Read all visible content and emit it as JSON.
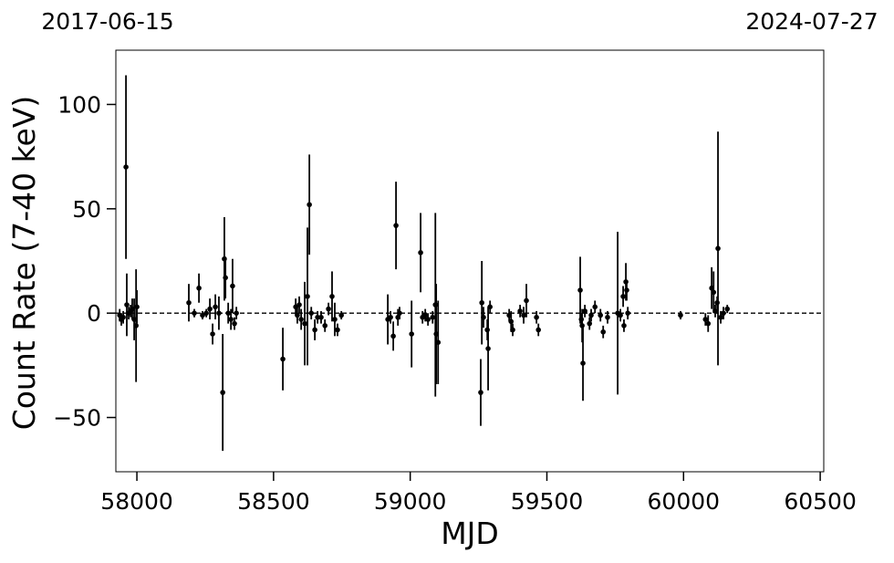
{
  "chart_data": {
    "type": "errorbar",
    "top_labels": [
      "2017-06-15",
      "2024-07-27"
    ],
    "xlabel": "MJD",
    "ylabel": "Count Rate (7-40 keV)",
    "color": "#000000",
    "x": [
      57937,
      57943,
      57950,
      57960,
      57963,
      57970,
      57977,
      57983,
      57990,
      57997,
      58000,
      58190,
      58210,
      58227,
      58240,
      58254,
      58267,
      58277,
      58287,
      58300,
      58314,
      58320,
      58324,
      58334,
      58344,
      58350,
      58357,
      58364,
      58534,
      58581,
      58587,
      58594,
      58601,
      58614,
      58624,
      58631,
      58638,
      58651,
      58661,
      58674,
      58688,
      58701,
      58714,
      58724,
      58734,
      58748,
      58918,
      58928,
      58938,
      58948,
      58955,
      58961,
      59005,
      59038,
      59045,
      59055,
      59065,
      59082,
      59092,
      59095,
      59102,
      59258,
      59262,
      59268,
      59282,
      59285,
      59292,
      59362,
      59369,
      59375,
      59402,
      59415,
      59425,
      59462,
      59469,
      59622,
      59626,
      59629,
      59632,
      59639,
      59656,
      59662,
      59676,
      59696,
      59706,
      59722,
      59759,
      59769,
      59779,
      59782,
      59789,
      59792,
      59796,
      59989,
      60080,
      60090,
      60103,
      60110,
      60116,
      60123,
      60126,
      60136,
      60146,
      60160
    ],
    "values": [
      -1,
      -3,
      -2,
      70,
      4,
      0,
      1,
      2,
      -3,
      -6,
      3,
      5,
      0,
      12,
      -1,
      0,
      2,
      -10,
      3,
      0,
      -38,
      26,
      17,
      0,
      -3,
      13,
      -5,
      0,
      -22,
      3,
      -1,
      4,
      -3,
      -5,
      8,
      52,
      0,
      -8,
      -2,
      -2,
      -6,
      2,
      8,
      -3,
      -8,
      -1,
      -3,
      -2,
      -11,
      42,
      -2,
      0,
      -10,
      29,
      -2,
      -1,
      -3,
      -2,
      4,
      -10,
      -14,
      -38,
      5,
      -2,
      -8,
      -17,
      3,
      -1,
      -4,
      -8,
      1,
      -1,
      6,
      -2,
      -8,
      11,
      -3,
      -6,
      -24,
      1,
      -5,
      -1,
      3,
      -1,
      -9,
      -2,
      0,
      -1,
      8,
      -6,
      15,
      11,
      0,
      -1,
      -3,
      -5,
      12,
      10,
      1,
      5,
      31,
      -2,
      0,
      2
    ],
    "errors": [
      3,
      3,
      3,
      44,
      15,
      3,
      3,
      5,
      10,
      27,
      8,
      9,
      2,
      7,
      2,
      2,
      5,
      5,
      6,
      8,
      28,
      20,
      10,
      5,
      5,
      13,
      3,
      3,
      15,
      4,
      4,
      4,
      5,
      20,
      33,
      24,
      3,
      5,
      3,
      3,
      3,
      3,
      12,
      8,
      3,
      2,
      12,
      3,
      7,
      21,
      4,
      3,
      16,
      19,
      3,
      3,
      3,
      3,
      44,
      24,
      20,
      16,
      20,
      5,
      5,
      20,
      3,
      3,
      5,
      3,
      3,
      4,
      8,
      3,
      3,
      16,
      3,
      8,
      18,
      3,
      3,
      3,
      3,
      3,
      3,
      3,
      39,
      3,
      5,
      3,
      9,
      5,
      3,
      2,
      3,
      4,
      10,
      10,
      3,
      3,
      56,
      3,
      3,
      2
    ],
    "hline": 0,
    "xlim": [
      57923,
      60513
    ],
    "ylim": [
      -76,
      126
    ],
    "xticks": [
      58000,
      58500,
      59000,
      59500,
      60000,
      60500
    ],
    "yticks": [
      {
        "value": -50,
        "label": "−50"
      },
      0,
      50,
      100
    ]
  }
}
